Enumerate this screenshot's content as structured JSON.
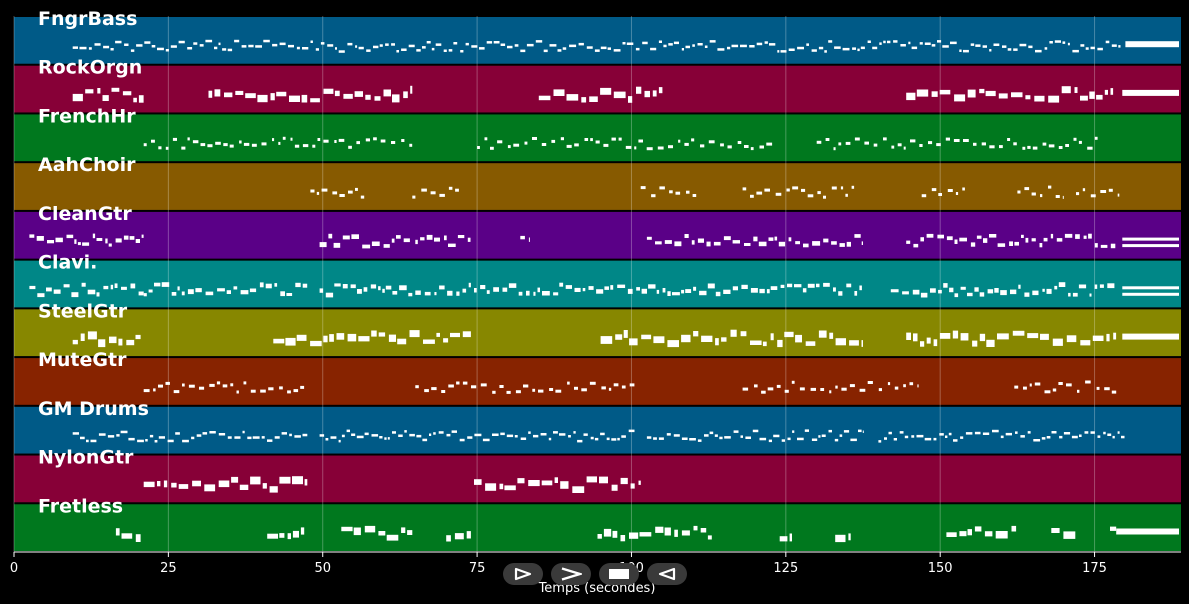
{
  "chart_data": {
    "type": "piano-roll",
    "title": "",
    "xlabel": "Temps (secondes)",
    "xlim": [
      0,
      189
    ],
    "xticks": [
      0,
      25,
      50,
      75,
      100,
      125,
      150,
      175
    ],
    "grid": true,
    "tracks": [
      {
        "name": "FngrBass",
        "color": "#005a87",
        "segments": [
          [
            9.5,
            179.5
          ]
        ],
        "density": "dense-small",
        "sustain": [
          [
            180,
            189
          ]
        ]
      },
      {
        "name": "RockOrgn",
        "color": "#870037",
        "segments": [
          [
            9.5,
            21
          ],
          [
            31.5,
            64.5
          ],
          [
            85,
            105
          ],
          [
            144.5,
            178
          ]
        ],
        "density": "blocks",
        "sustain": [
          [
            179.5,
            189
          ]
        ]
      },
      {
        "name": "FrenchHr",
        "color": "#00781e",
        "segments": [
          [
            21,
            64.5
          ],
          [
            75,
            123
          ],
          [
            130,
            175.5
          ]
        ],
        "density": "sparse-small",
        "sustain": []
      },
      {
        "name": "AahChoir",
        "color": "#875a00",
        "segments": [
          [
            48,
            57
          ],
          [
            64.5,
            72.5
          ],
          [
            101.5,
            110.5
          ],
          [
            118,
            136.5
          ],
          [
            147,
            154
          ],
          [
            162.5,
            170
          ],
          [
            172,
            179
          ]
        ],
        "density": "sparse",
        "sustain": []
      },
      {
        "name": "CleanGtr",
        "color": "#5a0087",
        "segments": [
          [
            2.5,
            21
          ],
          [
            49.5,
            64.5
          ],
          [
            65,
            74
          ],
          [
            82,
            83.5
          ],
          [
            102.5,
            137.5
          ],
          [
            144.5,
            178.5
          ]
        ],
        "density": "mixed",
        "sustain": [
          [
            179.5,
            189
          ]
        ]
      },
      {
        "name": "Clavi.",
        "color": "#008787",
        "segments": [
          [
            2.5,
            21
          ],
          [
            21,
            47.5
          ],
          [
            49.5,
            64.5
          ],
          [
            65,
            74
          ],
          [
            74.5,
            137.5
          ],
          [
            142,
            178.5
          ]
        ],
        "density": "mixed",
        "sustain": [
          [
            179.5,
            189
          ]
        ]
      },
      {
        "name": "SteelGtr",
        "color": "#878700",
        "segments": [
          [
            9.5,
            20.5
          ],
          [
            42,
            74
          ],
          [
            95,
            137.5
          ],
          [
            144.5,
            178.5
          ]
        ],
        "density": "blocks",
        "sustain": [
          [
            179.5,
            189
          ]
        ]
      },
      {
        "name": "MuteGtr",
        "color": "#872300",
        "segments": [
          [
            21,
            47.5
          ],
          [
            65,
            100.5
          ],
          [
            118,
            146.5
          ],
          [
            162,
            178.5
          ]
        ],
        "density": "sparse-small",
        "sustain": []
      },
      {
        "name": "GM Drums",
        "color": "#005a87",
        "segments": [
          [
            9.5,
            47.5
          ],
          [
            49.5,
            100.5
          ],
          [
            102.5,
            137.5
          ],
          [
            140,
            180
          ]
        ],
        "density": "dense-small",
        "sustain": []
      },
      {
        "name": "NylonGtr",
        "color": "#870037",
        "segments": [
          [
            21,
            47.5
          ],
          [
            74.5,
            101.5
          ]
        ],
        "density": "blocks",
        "sustain": []
      },
      {
        "name": "Fretless",
        "color": "#00781e",
        "segments": [
          [
            16.5,
            20.5
          ],
          [
            41,
            47
          ],
          [
            53,
            64.5
          ],
          [
            70,
            74
          ],
          [
            94.5,
            113
          ],
          [
            124,
            126
          ],
          [
            133,
            135.5
          ],
          [
            151,
            162.5
          ],
          [
            168,
            172
          ],
          [
            177.5,
            178.5
          ]
        ],
        "density": "sparse-blocks",
        "sustain": [
          [
            178.5,
            189
          ]
        ]
      }
    ]
  },
  "controls": [
    {
      "name": "rewind",
      "icon": "play-reverse-icon"
    },
    {
      "name": "play",
      "icon": "chevron-right-icon"
    },
    {
      "name": "stop",
      "icon": "stop-icon"
    },
    {
      "name": "back",
      "icon": "triangle-left-icon"
    }
  ]
}
